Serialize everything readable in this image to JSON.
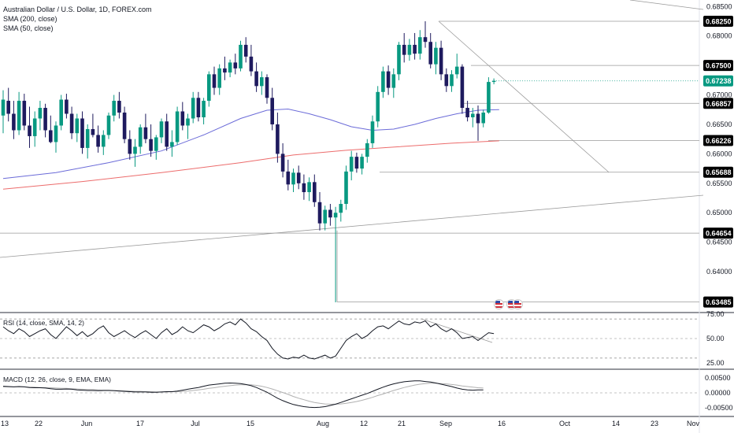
{
  "legend": {
    "title": "Australian Dollar / U.S. Dollar, 1D, FOREX.com",
    "sma200": "SMA (200, close)",
    "sma50": "SMA (50, close)",
    "rsi": "RSI (14, close, SMA, 14, 2)",
    "macd": "MACD (12, 26, close, 9, EMA, EMA)"
  },
  "colors": {
    "up": "#089981",
    "down": "#1e1a5e",
    "sma50": "#6b6bd8",
    "sma200": "#ec6c6c",
    "hline": "#9a9a9a",
    "text": "#131722"
  },
  "price_axis": {
    "ticks": [
      "0.68500",
      "0.68000",
      "0.67500",
      "0.67000",
      "0.66500",
      "0.66000",
      "0.65500",
      "0.65000",
      "0.64500",
      "0.64000"
    ]
  },
  "levels": [
    "0.68250",
    "0.67500",
    "0.66857",
    "0.66226",
    "0.65688",
    "0.64654",
    "0.63485"
  ],
  "current_price": "0.67238",
  "rsi_axis": {
    "ticks": [
      "75.00",
      "50.00",
      "25.00"
    ]
  },
  "macd_axis": {
    "ticks": [
      "0.00500",
      "0.00000",
      "-0.00500"
    ]
  },
  "time_axis": {
    "labels": [
      "13",
      "22",
      "Jun",
      "17",
      "Jul",
      "15",
      "Aug",
      "12",
      "21",
      "Sep",
      "16",
      "Oct",
      "14",
      "23",
      "Nov"
    ]
  },
  "chart_data": {
    "type": "candlestick",
    "instrument": "AUDUSD",
    "timeframe": "1D",
    "ohlc_sample": [
      {
        "o": 0.6665,
        "h": 0.6708,
        "l": 0.6635,
        "c": 0.6692
      },
      {
        "o": 0.669,
        "h": 0.6712,
        "l": 0.6655,
        "c": 0.6668
      },
      {
        "o": 0.6668,
        "h": 0.669,
        "l": 0.6625,
        "c": 0.664
      },
      {
        "o": 0.664,
        "h": 0.6705,
        "l": 0.6632,
        "c": 0.669
      },
      {
        "o": 0.669,
        "h": 0.6702,
        "l": 0.664,
        "c": 0.6648
      },
      {
        "o": 0.6648,
        "h": 0.668,
        "l": 0.661,
        "c": 0.663
      },
      {
        "o": 0.663,
        "h": 0.6672,
        "l": 0.6612,
        "c": 0.666
      },
      {
        "o": 0.666,
        "h": 0.669,
        "l": 0.664,
        "c": 0.6678
      },
      {
        "o": 0.6678,
        "h": 0.6685,
        "l": 0.6628,
        "c": 0.664
      },
      {
        "o": 0.664,
        "h": 0.6665,
        "l": 0.6618,
        "c": 0.662
      },
      {
        "o": 0.662,
        "h": 0.6655,
        "l": 0.6602,
        "c": 0.6648
      },
      {
        "o": 0.6648,
        "h": 0.67,
        "l": 0.664,
        "c": 0.6692
      },
      {
        "o": 0.6692,
        "h": 0.6702,
        "l": 0.666,
        "c": 0.6668
      },
      {
        "o": 0.6668,
        "h": 0.668,
        "l": 0.6625,
        "c": 0.6635
      },
      {
        "o": 0.6635,
        "h": 0.6668,
        "l": 0.662,
        "c": 0.666
      },
      {
        "o": 0.666,
        "h": 0.6672,
        "l": 0.66,
        "c": 0.661
      },
      {
        "o": 0.661,
        "h": 0.665,
        "l": 0.6592,
        "c": 0.6642
      },
      {
        "o": 0.6642,
        "h": 0.6668,
        "l": 0.6628,
        "c": 0.6632
      },
      {
        "o": 0.6632,
        "h": 0.6648,
        "l": 0.6602,
        "c": 0.6612
      },
      {
        "o": 0.6612,
        "h": 0.664,
        "l": 0.6598,
        "c": 0.6632
      },
      {
        "o": 0.6632,
        "h": 0.667,
        "l": 0.6625,
        "c": 0.6665
      },
      {
        "o": 0.6665,
        "h": 0.67,
        "l": 0.6655,
        "c": 0.669
      },
      {
        "o": 0.669,
        "h": 0.6705,
        "l": 0.666,
        "c": 0.667
      },
      {
        "o": 0.667,
        "h": 0.668,
        "l": 0.6618,
        "c": 0.6625
      },
      {
        "o": 0.6625,
        "h": 0.664,
        "l": 0.659,
        "c": 0.66
      },
      {
        "o": 0.66,
        "h": 0.6625,
        "l": 0.6578,
        "c": 0.6612
      },
      {
        "o": 0.6612,
        "h": 0.665,
        "l": 0.66,
        "c": 0.6645
      },
      {
        "o": 0.6645,
        "h": 0.6668,
        "l": 0.6618,
        "c": 0.6625
      },
      {
        "o": 0.6625,
        "h": 0.665,
        "l": 0.6595,
        "c": 0.6605
      },
      {
        "o": 0.6605,
        "h": 0.6632,
        "l": 0.659,
        "c": 0.6628
      },
      {
        "o": 0.6628,
        "h": 0.666,
        "l": 0.6618,
        "c": 0.6655
      },
      {
        "o": 0.6655,
        "h": 0.6668,
        "l": 0.6605,
        "c": 0.6612
      },
      {
        "o": 0.6612,
        "h": 0.664,
        "l": 0.6595,
        "c": 0.662
      },
      {
        "o": 0.662,
        "h": 0.668,
        "l": 0.6615,
        "c": 0.6672
      },
      {
        "o": 0.6672,
        "h": 0.6688,
        "l": 0.664,
        "c": 0.6648
      },
      {
        "o": 0.6648,
        "h": 0.6668,
        "l": 0.6625,
        "c": 0.666
      },
      {
        "o": 0.666,
        "h": 0.6705,
        "l": 0.6652,
        "c": 0.6695
      },
      {
        "o": 0.6695,
        "h": 0.6705,
        "l": 0.6655,
        "c": 0.6662
      },
      {
        "o": 0.6662,
        "h": 0.6695,
        "l": 0.665,
        "c": 0.669
      },
      {
        "o": 0.669,
        "h": 0.674,
        "l": 0.668,
        "c": 0.6735
      },
      {
        "o": 0.6735,
        "h": 0.6748,
        "l": 0.67,
        "c": 0.6712
      },
      {
        "o": 0.6712,
        "h": 0.6752,
        "l": 0.67,
        "c": 0.6745
      },
      {
        "o": 0.6745,
        "h": 0.6765,
        "l": 0.6725,
        "c": 0.6738
      },
      {
        "o": 0.6738,
        "h": 0.676,
        "l": 0.673,
        "c": 0.6755
      },
      {
        "o": 0.6755,
        "h": 0.677,
        "l": 0.6735,
        "c": 0.6745
      },
      {
        "o": 0.6745,
        "h": 0.6792,
        "l": 0.674,
        "c": 0.6785
      },
      {
        "o": 0.6785,
        "h": 0.6798,
        "l": 0.6755,
        "c": 0.6765
      },
      {
        "o": 0.6765,
        "h": 0.6785,
        "l": 0.6732,
        "c": 0.674
      },
      {
        "o": 0.674,
        "h": 0.6755,
        "l": 0.6705,
        "c": 0.6715
      },
      {
        "o": 0.6715,
        "h": 0.674,
        "l": 0.67,
        "c": 0.673
      },
      {
        "o": 0.673,
        "h": 0.6735,
        "l": 0.6685,
        "c": 0.6695
      },
      {
        "o": 0.6695,
        "h": 0.6712,
        "l": 0.664,
        "c": 0.665
      },
      {
        "o": 0.665,
        "h": 0.667,
        "l": 0.6585,
        "c": 0.66
      },
      {
        "o": 0.66,
        "h": 0.6618,
        "l": 0.656,
        "c": 0.657
      },
      {
        "o": 0.657,
        "h": 0.659,
        "l": 0.6538,
        "c": 0.6548
      },
      {
        "o": 0.6548,
        "h": 0.6575,
        "l": 0.6535,
        "c": 0.6568
      },
      {
        "o": 0.6568,
        "h": 0.658,
        "l": 0.654,
        "c": 0.655
      },
      {
        "o": 0.655,
        "h": 0.6565,
        "l": 0.6522,
        "c": 0.6535
      },
      {
        "o": 0.6535,
        "h": 0.656,
        "l": 0.652,
        "c": 0.6552
      },
      {
        "o": 0.6552,
        "h": 0.6565,
        "l": 0.651,
        "c": 0.6518
      },
      {
        "o": 0.6518,
        "h": 0.6535,
        "l": 0.647,
        "c": 0.6482
      },
      {
        "o": 0.6482,
        "h": 0.6512,
        "l": 0.647,
        "c": 0.6505
      },
      {
        "o": 0.6505,
        "h": 0.6515,
        "l": 0.6478,
        "c": 0.6492
      },
      {
        "o": 0.6492,
        "h": 0.651,
        "l": 0.6348,
        "c": 0.65
      },
      {
        "o": 0.65,
        "h": 0.6522,
        "l": 0.6485,
        "c": 0.6515
      },
      {
        "o": 0.6515,
        "h": 0.658,
        "l": 0.6505,
        "c": 0.657
      },
      {
        "o": 0.657,
        "h": 0.6605,
        "l": 0.6555,
        "c": 0.6595
      },
      {
        "o": 0.6595,
        "h": 0.6602,
        "l": 0.6568,
        "c": 0.6575
      },
      {
        "o": 0.6575,
        "h": 0.66,
        "l": 0.6565,
        "c": 0.6595
      },
      {
        "o": 0.6595,
        "h": 0.6625,
        "l": 0.6585,
        "c": 0.6618
      },
      {
        "o": 0.6618,
        "h": 0.6665,
        "l": 0.661,
        "c": 0.6655
      },
      {
        "o": 0.6655,
        "h": 0.6715,
        "l": 0.6645,
        "c": 0.6705
      },
      {
        "o": 0.6705,
        "h": 0.6748,
        "l": 0.6695,
        "c": 0.674
      },
      {
        "o": 0.674,
        "h": 0.675,
        "l": 0.67,
        "c": 0.6712
      },
      {
        "o": 0.6712,
        "h": 0.6745,
        "l": 0.6695,
        "c": 0.6735
      },
      {
        "o": 0.6735,
        "h": 0.679,
        "l": 0.6725,
        "c": 0.6785
      },
      {
        "o": 0.6785,
        "h": 0.6805,
        "l": 0.6755,
        "c": 0.6768
      },
      {
        "o": 0.6768,
        "h": 0.6795,
        "l": 0.6758,
        "c": 0.6785
      },
      {
        "o": 0.6785,
        "h": 0.6805,
        "l": 0.676,
        "c": 0.677
      },
      {
        "o": 0.677,
        "h": 0.681,
        "l": 0.676,
        "c": 0.6798
      },
      {
        "o": 0.6798,
        "h": 0.6825,
        "l": 0.678,
        "c": 0.679
      },
      {
        "o": 0.679,
        "h": 0.6805,
        "l": 0.6745,
        "c": 0.6752
      },
      {
        "o": 0.6752,
        "h": 0.679,
        "l": 0.6735,
        "c": 0.678
      },
      {
        "o": 0.678,
        "h": 0.6792,
        "l": 0.6725,
        "c": 0.6735
      },
      {
        "o": 0.6735,
        "h": 0.6745,
        "l": 0.6705,
        "c": 0.6715
      },
      {
        "o": 0.6715,
        "h": 0.6742,
        "l": 0.6705,
        "c": 0.6735
      },
      {
        "o": 0.6735,
        "h": 0.677,
        "l": 0.6728,
        "c": 0.6748
      },
      {
        "o": 0.6748,
        "h": 0.6752,
        "l": 0.6668,
        "c": 0.6678
      },
      {
        "o": 0.6678,
        "h": 0.669,
        "l": 0.6655,
        "c": 0.6662
      },
      {
        "o": 0.6662,
        "h": 0.6678,
        "l": 0.6645,
        "c": 0.6668
      },
      {
        "o": 0.6668,
        "h": 0.6682,
        "l": 0.6622,
        "c": 0.6652
      },
      {
        "o": 0.6652,
        "h": 0.6675,
        "l": 0.6645,
        "c": 0.667
      },
      {
        "o": 0.667,
        "h": 0.673,
        "l": 0.6668,
        "c": 0.6722
      },
      {
        "o": 0.6722,
        "h": 0.6728,
        "l": 0.6718,
        "c": 0.6724
      }
    ],
    "sma50_points": [
      [
        0,
        0.6558
      ],
      [
        10,
        0.6568
      ],
      [
        20,
        0.6585
      ],
      [
        30,
        0.6605
      ],
      [
        38,
        0.6632
      ],
      [
        45,
        0.666
      ],
      [
        50,
        0.6674
      ],
      [
        54,
        0.6676
      ],
      [
        58,
        0.6668
      ],
      [
        62,
        0.6658
      ],
      [
        66,
        0.6646
      ],
      [
        70,
        0.664
      ],
      [
        74,
        0.6642
      ],
      [
        78,
        0.665
      ],
      [
        82,
        0.666
      ],
      [
        86,
        0.6668
      ],
      [
        90,
        0.6674
      ],
      [
        94,
        0.6675
      ]
    ],
    "sma200_points": [
      [
        0,
        0.654
      ],
      [
        15,
        0.6553
      ],
      [
        30,
        0.6568
      ],
      [
        45,
        0.6585
      ],
      [
        55,
        0.6598
      ],
      [
        65,
        0.6606
      ],
      [
        75,
        0.6612
      ],
      [
        85,
        0.6618
      ],
      [
        94,
        0.6622
      ]
    ],
    "rsi_values": [
      62,
      58,
      55,
      60,
      57,
      52,
      55,
      58,
      60,
      54,
      50,
      56,
      62,
      58,
      53,
      57,
      52,
      55,
      60,
      63,
      56,
      52,
      55,
      58,
      54,
      51,
      55,
      58,
      54,
      50,
      56,
      60,
      54,
      57,
      62,
      58,
      56,
      60,
      64,
      62,
      58,
      61,
      65,
      67,
      64,
      70,
      66,
      60,
      57,
      52,
      48,
      40,
      34,
      30,
      29,
      31,
      30,
      33,
      30,
      29,
      31,
      33,
      30,
      32,
      40,
      48,
      52,
      55,
      50,
      53,
      58,
      62,
      63,
      60,
      64,
      68,
      65,
      64,
      67,
      66,
      68,
      62,
      65,
      60,
      57,
      60,
      56,
      50,
      51,
      52,
      48,
      52,
      56,
      55
    ],
    "macd_values": [
      0.0022,
      0.0021,
      0.002,
      0.0021,
      0.002,
      0.0018,
      0.0017,
      0.0017,
      0.0016,
      0.0014,
      0.0012,
      0.0012,
      0.0013,
      0.0012,
      0.001,
      0.0009,
      0.0008,
      0.0008,
      0.0007,
      0.0008,
      0.0008,
      0.0007,
      0.0006,
      0.0005,
      0.0004,
      0.0003,
      0.0003,
      0.0003,
      0.0002,
      0.0002,
      0.0003,
      0.0004,
      0.0004,
      0.0006,
      0.0009,
      0.0012,
      0.0015,
      0.0018,
      0.0022,
      0.0026,
      0.0028,
      0.003,
      0.0032,
      0.0033,
      0.0032,
      0.0031,
      0.0028,
      0.0024,
      0.0018,
      0.001,
      0.0002,
      -0.0008,
      -0.0018,
      -0.0026,
      -0.0033,
      -0.0039,
      -0.0043,
      -0.0046,
      -0.0048,
      -0.0049,
      -0.0048,
      -0.0046,
      -0.0042,
      -0.0038,
      -0.0032,
      -0.0026,
      -0.002,
      -0.0014,
      -0.0008,
      -0.0002,
      0.0005,
      0.0012,
      0.0019,
      0.0025,
      0.003,
      0.0034,
      0.0037,
      0.0039,
      0.004,
      0.004,
      0.0038,
      0.0036,
      0.0033,
      0.0029,
      0.0025,
      0.0021,
      0.0016,
      0.0012,
      0.001,
      0.0009,
      0.001,
      0.001
    ],
    "signal_values": [
      0.002,
      0.002,
      0.002,
      0.002,
      0.002,
      0.0019,
      0.0019,
      0.0018,
      0.0018,
      0.0017,
      0.0016,
      0.0015,
      0.0015,
      0.0014,
      0.0013,
      0.0012,
      0.0011,
      0.0011,
      0.001,
      0.0009,
      0.0009,
      0.0008,
      0.0008,
      0.0007,
      0.0006,
      0.0005,
      0.0005,
      0.0004,
      0.0004,
      0.0003,
      0.0003,
      0.0003,
      0.0004,
      0.0004,
      0.0005,
      0.0006,
      0.0008,
      0.001,
      0.0012,
      0.0015,
      0.0017,
      0.002,
      0.0022,
      0.0024,
      0.0026,
      0.0027,
      0.0027,
      0.0027,
      0.0025,
      0.0022,
      0.0018,
      0.0013,
      0.0007,
      0.0001,
      -0.0005,
      -0.0012,
      -0.0018,
      -0.0023,
      -0.0028,
      -0.0032,
      -0.0035,
      -0.0037,
      -0.0038,
      -0.0038,
      -0.0037,
      -0.0035,
      -0.0032,
      -0.0029,
      -0.0025,
      -0.002,
      -0.0015,
      -0.0009,
      -0.0004,
      0.0002,
      0.0008,
      0.0013,
      0.0018,
      0.0022,
      0.0026,
      0.0029,
      0.0031,
      0.0032,
      0.0032,
      0.0031,
      0.003,
      0.0028,
      0.0026,
      0.0023,
      0.0021,
      0.0019,
      0.0017,
      0.0016
    ]
  }
}
